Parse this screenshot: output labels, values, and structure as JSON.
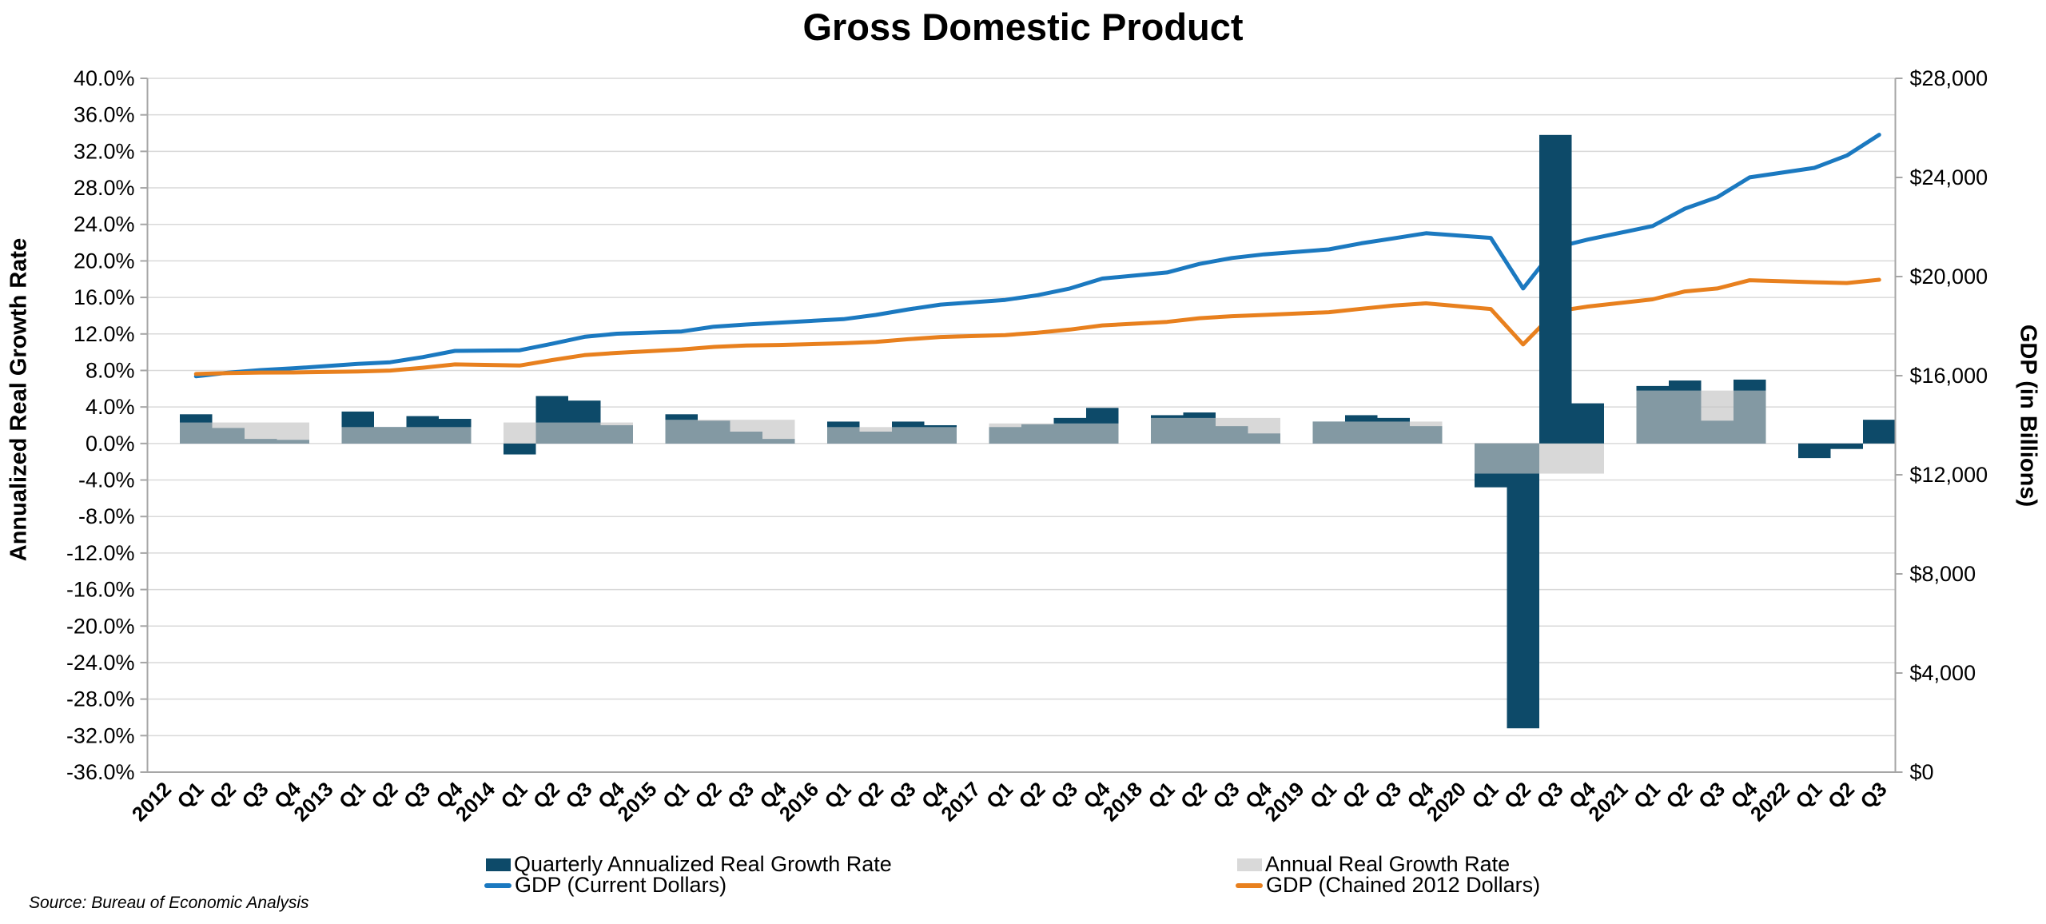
{
  "title": "Gross Domestic Product",
  "source_note": "Source: Bureau of Economic Analysis",
  "legend": {
    "quarterly": "Quarterly Annualized Real Growth Rate",
    "annual": "Annual Real Growth Rate",
    "gdp_current": "GDP (Current Dollars)",
    "gdp_chained": "GDP (Chained 2012 Dollars)"
  },
  "colors": {
    "quarterly_bar": "#0d4a69",
    "annual_bar_overlay": "rgba(195,195,195,0.65)",
    "annual_legend_swatch": "#d9d9d9",
    "gdp_current_line": "#1b79c0",
    "gdp_chained_line": "#e8801e",
    "gridline": "#d9d9d9",
    "axis_line": "#a6a6a6",
    "text": "#000000"
  },
  "chart_data": {
    "type": [
      "bar",
      "line"
    ],
    "title": "Gross Domestic Product",
    "grid": true,
    "legend_position": "bottom",
    "left_axis": {
      "label": "Annualized Real Growth Rate",
      "min": -36,
      "max": 40,
      "step": 4,
      "unit": "%",
      "ticks": [
        "40.0%",
        "36.0%",
        "32.0%",
        "28.0%",
        "24.0%",
        "20.0%",
        "16.0%",
        "12.0%",
        "8.0%",
        "4.0%",
        "0.0%",
        "-4.0%",
        "-8.0%",
        "-12.0%",
        "-16.0%",
        "-20.0%",
        "-24.0%",
        "-28.0%",
        "-32.0%",
        "-36.0%"
      ]
    },
    "right_axis": {
      "label": "GDP (in Billions)",
      "min": 0,
      "max": 28000,
      "step": 4000,
      "ticks": [
        "$28,000",
        "$24,000",
        "$20,000",
        "$16,000",
        "$12,000",
        "$8,000",
        "$4,000",
        "$0"
      ]
    },
    "series_names": {
      "quarterly_bars": "Quarterly Annualized Real Growth Rate",
      "annual_bars": "Annual Real Growth Rate",
      "line_current": "GDP (Current Dollars)",
      "line_chained": "GDP (Chained 2012 Dollars)"
    },
    "years": [
      {
        "year": "2012",
        "quarters": [
          "Q1",
          "Q2",
          "Q3",
          "Q4"
        ],
        "quarterly_growth": [
          3.2,
          1.7,
          0.5,
          0.4
        ],
        "annual_growth": 2.3,
        "gdp_current": [
          15973,
          16122,
          16227,
          16297
        ],
        "gdp_chained": [
          16068,
          16105,
          16125,
          16130
        ]
      },
      {
        "year": "2013",
        "quarters": [
          "Q1",
          "Q2",
          "Q3",
          "Q4"
        ],
        "quarterly_growth": [
          3.5,
          1.8,
          3.0,
          2.7
        ],
        "annual_growth": 1.8,
        "gdp_current": [
          16475,
          16541,
          16749,
          16999
        ],
        "gdp_chained": [
          16170,
          16205,
          16320,
          16454
        ]
      },
      {
        "year": "2014",
        "quarters": [
          "Q1",
          "Q2",
          "Q3",
          "Q4"
        ],
        "quarterly_growth": [
          -1.2,
          5.2,
          4.7,
          2.0
        ],
        "annual_growth": 2.3,
        "gdp_current": [
          17025,
          17286,
          17569,
          17693
        ],
        "gdp_chained": [
          16410,
          16630,
          16830,
          16920
        ]
      },
      {
        "year": "2015",
        "quarters": [
          "Q1",
          "Q2",
          "Q3",
          "Q4"
        ],
        "quarterly_growth": [
          3.2,
          2.5,
          1.3,
          0.5
        ],
        "annual_growth": 2.6,
        "gdp_current": [
          17785,
          17977,
          18064,
          18139
        ],
        "gdp_chained": [
          17055,
          17160,
          17215,
          17240
        ]
      },
      {
        "year": "2016",
        "quarters": [
          "Q1",
          "Q2",
          "Q3",
          "Q4"
        ],
        "quarterly_growth": [
          2.4,
          1.3,
          2.4,
          2.0
        ],
        "annual_growth": 1.8,
        "gdp_current": [
          18281,
          18450,
          18675,
          18869
        ],
        "gdp_chained": [
          17310,
          17365,
          17470,
          17560
        ]
      },
      {
        "year": "2017",
        "quarters": [
          "Q1",
          "Q2",
          "Q3",
          "Q4"
        ],
        "quarterly_growth": [
          1.8,
          2.1,
          2.8,
          3.9
        ],
        "annual_growth": 2.2,
        "gdp_current": [
          19058,
          19250,
          19519,
          19918
        ],
        "gdp_chained": [
          17640,
          17735,
          17860,
          18030
        ]
      },
      {
        "year": "2018",
        "quarters": [
          "Q1",
          "Q2",
          "Q3",
          "Q4"
        ],
        "quarterly_growth": [
          3.1,
          3.4,
          1.9,
          1.1
        ],
        "annual_growth": 2.8,
        "gdp_current": [
          20163,
          20511,
          20749,
          20898
        ],
        "gdp_chained": [
          18170,
          18320,
          18400,
          18450
        ]
      },
      {
        "year": "2019",
        "quarters": [
          "Q1",
          "Q2",
          "Q3",
          "Q4"
        ],
        "quarterly_growth": [
          2.4,
          3.1,
          2.8,
          1.9
        ],
        "annual_growth": 2.4,
        "gdp_current": [
          21098,
          21341,
          21541,
          21749
        ],
        "gdp_chained": [
          18560,
          18700,
          18830,
          18920
        ]
      },
      {
        "year": "2020",
        "quarters": [
          "Q1",
          "Q2",
          "Q3",
          "Q4"
        ],
        "quarterly_growth": [
          -4.8,
          -31.2,
          33.8,
          4.4
        ],
        "annual_growth": -3.3,
        "gdp_current": [
          21561,
          19520,
          21170,
          21495
        ],
        "gdp_chained": [
          18690,
          17260,
          18590,
          18790
        ]
      },
      {
        "year": "2021",
        "quarters": [
          "Q1",
          "Q2",
          "Q3",
          "Q4"
        ],
        "quarterly_growth": [
          6.3,
          6.9,
          2.5,
          7.0
        ],
        "annual_growth": 5.8,
        "gdp_current": [
          22038,
          22741,
          23202,
          24003
        ],
        "gdp_chained": [
          19080,
          19400,
          19520,
          19850
        ]
      },
      {
        "year": "2022",
        "quarters": [
          "Q1",
          "Q2",
          "Q3"
        ],
        "quarterly_growth": [
          -1.6,
          -0.6,
          2.6
        ],
        "annual_growth": null,
        "gdp_current": [
          24386,
          24883,
          25724
        ],
        "gdp_chained": [
          19770,
          19740,
          19870
        ]
      }
    ]
  }
}
